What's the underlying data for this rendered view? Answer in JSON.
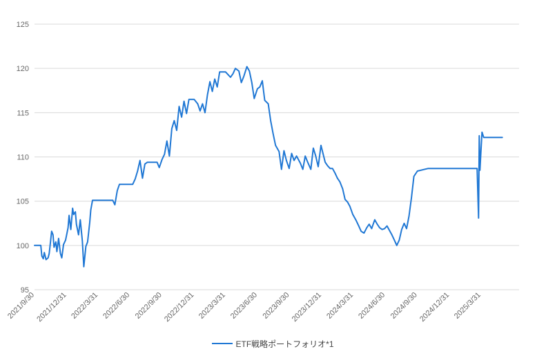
{
  "chart_data": {
    "type": "line",
    "title": "",
    "xlabel": "",
    "ylabel": "",
    "ylim": [
      95,
      125
    ],
    "yticks": [
      95,
      100,
      105,
      110,
      115,
      120,
      125
    ],
    "x_tick_labels": [
      "2021/9/30",
      "2021/12/31",
      "2022/3/31",
      "2022/6/30",
      "2022/9/30",
      "2022/12/31",
      "2023/3/31",
      "2023/6/30",
      "2023/9/30",
      "2023/12/31",
      "2024/3/31",
      "2024/6/30",
      "2024/9/30",
      "2024/12/31",
      "2025/3/31"
    ],
    "grid": true,
    "legend_position": "bottom",
    "series": [
      {
        "name": "ETF戦略ポートフォリオ*1",
        "color": "#1f77d4",
        "x": [
          "2021/9/30",
          "2021/10/8",
          "2021/10/11",
          "2021/10/14",
          "2021/10/18",
          "2021/10/21",
          "2021/10/25",
          "2021/10/28",
          "2021/11/2",
          "2021/11/8",
          "2021/11/11",
          "2021/11/15",
          "2021/11/18",
          "2021/11/22",
          "2021/11/25",
          "2021/11/30",
          "2021/12/3",
          "2021/12/8",
          "2021/12/13",
          "2021/12/17",
          "2021/12/22",
          "2021/12/28",
          "2022/1/4",
          "2022/1/7",
          "2022/1/12",
          "2022/1/17",
          "2022/1/20",
          "2022/1/25",
          "2022/1/28",
          "2022/2/3",
          "2022/2/8",
          "2022/2/14",
          "2022/2/18",
          "2022/2/24",
          "2022/3/1",
          "2022/3/7",
          "2022/3/10",
          "2022/3/15",
          "2022/3/21",
          "2022/3/25",
          "2022/3/31",
          "2022/4/6",
          "2022/4/12",
          "2022/4/15",
          "2022/4/21",
          "2022/4/28",
          "2022/5/6",
          "2022/5/12",
          "2022/5/18",
          "2022/5/25",
          "2022/5/31",
          "2022/6/7",
          "2022/6/14",
          "2022/6/20",
          "2022/6/27",
          "2022/6/30",
          "2022/7/8",
          "2022/7/15",
          "2022/7/22",
          "2022/7/29",
          "2022/8/5",
          "2022/8/12",
          "2022/8/19",
          "2022/8/26",
          "2022/9/2",
          "2022/9/9",
          "2022/9/16",
          "2022/9/22",
          "2022/9/30",
          "2022/10/7",
          "2022/10/14",
          "2022/10/21",
          "2022/10/28",
          "2022/11/4",
          "2022/11/11",
          "2022/11/18",
          "2022/11/25",
          "2022/12/2",
          "2022/12/9",
          "2022/12/16",
          "2022/12/23",
          "2022/12/31",
          "2023/1/10",
          "2023/1/17",
          "2023/1/24",
          "2023/1/31",
          "2023/2/7",
          "2023/2/14",
          "2023/2/21",
          "2023/2/28",
          "2023/3/7",
          "2023/3/14",
          "2023/3/21",
          "2023/3/31",
          "2023/4/7",
          "2023/4/14",
          "2023/4/21",
          "2023/4/28",
          "2023/5/8",
          "2023/5/15",
          "2023/5/22",
          "2023/5/31",
          "2023/6/7",
          "2023/6/14",
          "2023/6/21",
          "2023/6/30",
          "2023/7/7",
          "2023/7/14",
          "2023/7/21",
          "2023/7/31",
          "2023/8/7",
          "2023/8/14",
          "2023/8/21",
          "2023/8/31",
          "2023/9/7",
          "2023/9/14",
          "2023/9/21",
          "2023/9/29",
          "2023/10/6",
          "2023/10/13",
          "2023/10/20",
          "2023/10/31",
          "2023/11/7",
          "2023/11/14",
          "2023/11/21",
          "2023/11/30",
          "2023/12/7",
          "2023/12/14",
          "2023/12/21",
          "2023/12/29",
          "2024/1/10",
          "2024/1/17",
          "2024/1/24",
          "2024/1/31",
          "2024/2/7",
          "2024/2/14",
          "2024/2/21",
          "2024/2/29",
          "2024/3/7",
          "2024/3/14",
          "2024/3/21",
          "2024/3/29",
          "2024/4/8",
          "2024/4/15",
          "2024/4/22",
          "2024/4/30",
          "2024/5/8",
          "2024/5/15",
          "2024/5/22",
          "2024/5/31",
          "2024/6/7",
          "2024/6/14",
          "2024/6/21",
          "2024/6/28",
          "2024/7/5",
          "2024/7/12",
          "2024/7/19",
          "2024/7/26",
          "2024/8/2",
          "2024/8/9",
          "2024/8/16",
          "2024/8/23",
          "2024/8/30",
          "2024/9/6",
          "2024/9/13",
          "2024/9/20",
          "2024/9/30",
          "2024/10/31",
          "2024/11/29",
          "2024/12/31",
          "2025/1/31",
          "2025/2/28",
          "2025/3/14",
          "2025/3/18",
          "2025/3/20",
          "2025/3/24",
          "2025/3/26",
          "2025/3/28",
          "2025/3/31",
          "2025/4/3",
          "2025/4/8",
          "2025/4/15",
          "2025/4/30",
          "2025/5/15",
          "2025/5/31"
        ],
        "values": [
          100.0,
          100.0,
          100.0,
          100.0,
          100.0,
          98.8,
          98.5,
          99.2,
          98.4,
          98.6,
          99.1,
          100.5,
          101.6,
          101.2,
          99.8,
          100.4,
          99.3,
          100.8,
          99.1,
          98.6,
          100.1,
          100.6,
          102.0,
          103.4,
          101.8,
          104.2,
          103.5,
          103.8,
          102.4,
          101.2,
          102.9,
          100.5,
          97.6,
          99.9,
          100.4,
          102.6,
          104.0,
          105.1,
          105.1,
          105.1,
          105.1,
          105.1,
          105.1,
          105.1,
          105.1,
          105.1,
          105.1,
          105.1,
          104.6,
          106.2,
          106.9,
          106.9,
          106.9,
          106.9,
          106.9,
          106.9,
          106.9,
          107.5,
          108.4,
          109.6,
          107.6,
          109.2,
          109.4,
          109.4,
          109.4,
          109.4,
          109.4,
          108.8,
          109.7,
          110.3,
          111.8,
          110.1,
          113.2,
          114.1,
          113.0,
          115.7,
          114.5,
          116.3,
          114.9,
          116.5,
          116.5,
          116.5,
          116.0,
          115.2,
          116.0,
          115.0,
          117.0,
          118.5,
          117.4,
          118.8,
          117.9,
          119.6,
          119.6,
          119.6,
          119.3,
          119.0,
          119.4,
          120.0,
          119.7,
          118.4,
          119.1,
          120.2,
          119.7,
          118.4,
          116.6,
          117.7,
          117.9,
          118.6,
          116.4,
          116.0,
          114.1,
          112.6,
          111.3,
          110.6,
          108.6,
          110.7,
          109.6,
          108.7,
          110.4,
          109.6,
          110.1,
          109.3,
          108.6,
          110.1,
          109.4,
          108.6,
          111.0,
          110.1,
          108.9,
          111.3,
          109.4,
          109.0,
          108.7,
          108.7,
          108.2,
          107.6,
          107.2,
          106.4,
          105.2,
          104.9,
          104.4,
          103.5,
          102.8,
          102.2,
          101.6,
          101.4,
          102.0,
          102.4,
          101.9,
          102.9,
          102.4,
          102.0,
          101.8,
          101.9,
          102.2,
          101.7,
          101.2,
          100.6,
          100.0,
          100.6,
          101.8,
          102.5,
          101.9,
          103.3,
          105.4,
          107.8,
          108.4,
          108.7,
          108.7,
          108.7,
          108.7,
          108.7,
          108.7,
          108.7,
          108.7,
          103.1,
          112.4,
          108.5,
          110.7,
          112.8,
          112.2,
          112.2,
          112.2,
          112.2,
          112.2
        ]
      }
    ]
  }
}
